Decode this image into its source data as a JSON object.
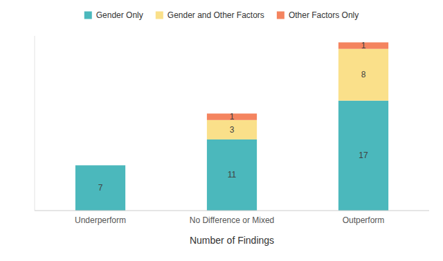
{
  "chart_data": {
    "type": "bar",
    "stacked": true,
    "categories": [
      "Underperform",
      "No Difference or Mixed",
      "Outperform"
    ],
    "series": [
      {
        "name": "Gender Only",
        "color": "#4BB8BC",
        "values": [
          7,
          11,
          17
        ]
      },
      {
        "name": "Gender and Other Factors",
        "color": "#FAE08A",
        "values": [
          0,
          3,
          8
        ]
      },
      {
        "name": "Other Factors Only",
        "color": "#F4845F",
        "values": [
          0,
          1,
          1
        ]
      }
    ],
    "xlabel": "Number of Findings",
    "ylim": [
      0,
      27
    ],
    "tick_labels": "x",
    "data_labels": true,
    "grid": false,
    "legend": "top"
  }
}
